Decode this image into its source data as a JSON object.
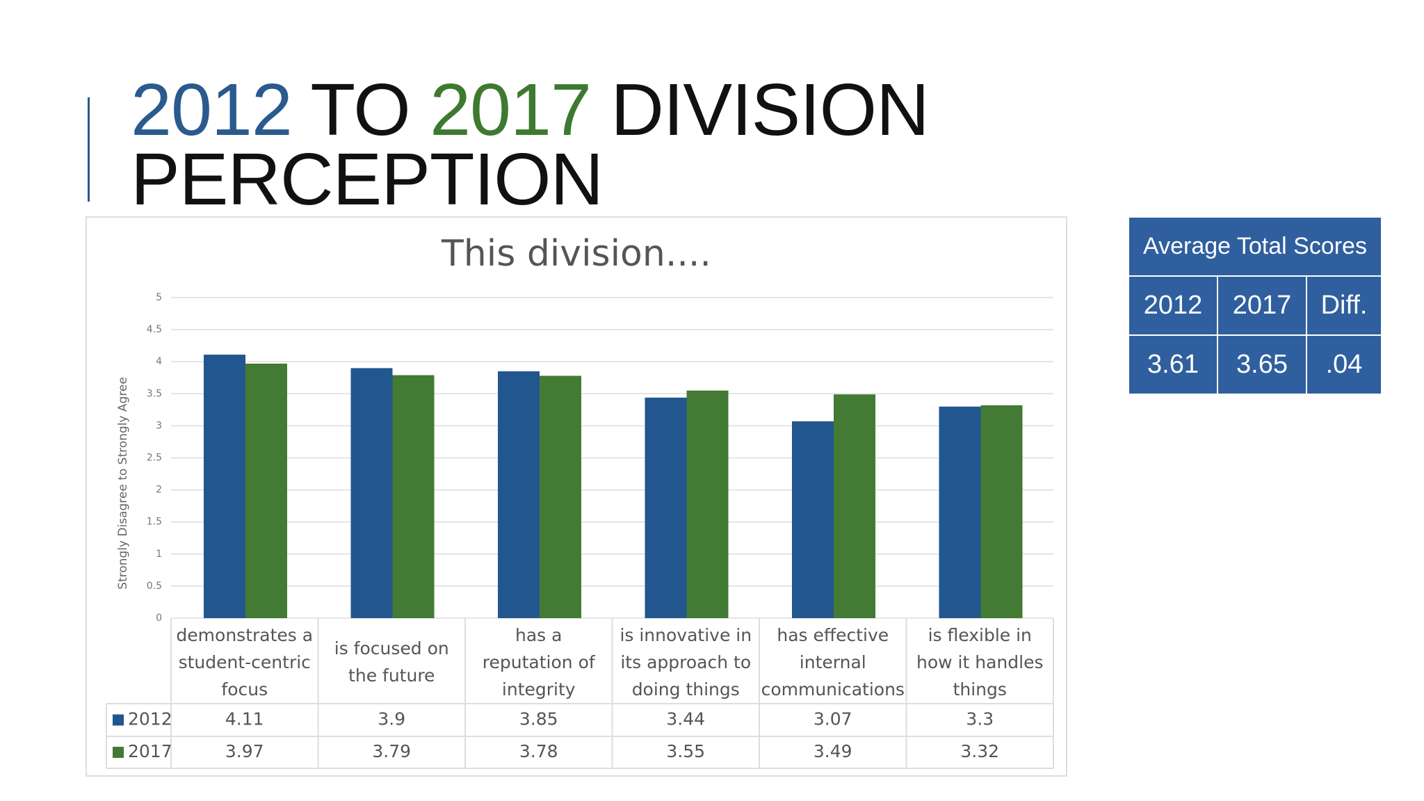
{
  "title": {
    "year1": "2012",
    "to": "TO",
    "year2": "2017",
    "rest": "DIVISION",
    "line2": "PERCEPTION"
  },
  "chart_data": {
    "type": "bar",
    "title": "This division....",
    "y_label": "Strongly Disagree to Strongly Agree",
    "categories": [
      "demonstrates a student-centric focus",
      "is focused on the future",
      "has a reputation of integrity",
      "is innovative in its approach to doing things",
      "has effective internal communications",
      "is flexible in how it handles things"
    ],
    "series": [
      {
        "name": "2012",
        "color": "#22568f",
        "values": [
          4.11,
          3.9,
          3.85,
          3.44,
          3.07,
          3.3
        ]
      },
      {
        "name": "2017",
        "color": "#437a34",
        "values": [
          3.97,
          3.79,
          3.78,
          3.55,
          3.49,
          3.32
        ]
      }
    ],
    "ylim": [
      0,
      5
    ],
    "yticks": [
      0,
      0.5,
      1,
      1.5,
      2,
      2.5,
      3,
      3.5,
      4,
      4.5,
      5
    ],
    "grid": true
  },
  "side_table": {
    "header": "Average Total Scores",
    "columns": [
      "2012",
      "2017",
      "Diff."
    ],
    "row": [
      "3.61",
      "3.65",
      ".04"
    ]
  }
}
